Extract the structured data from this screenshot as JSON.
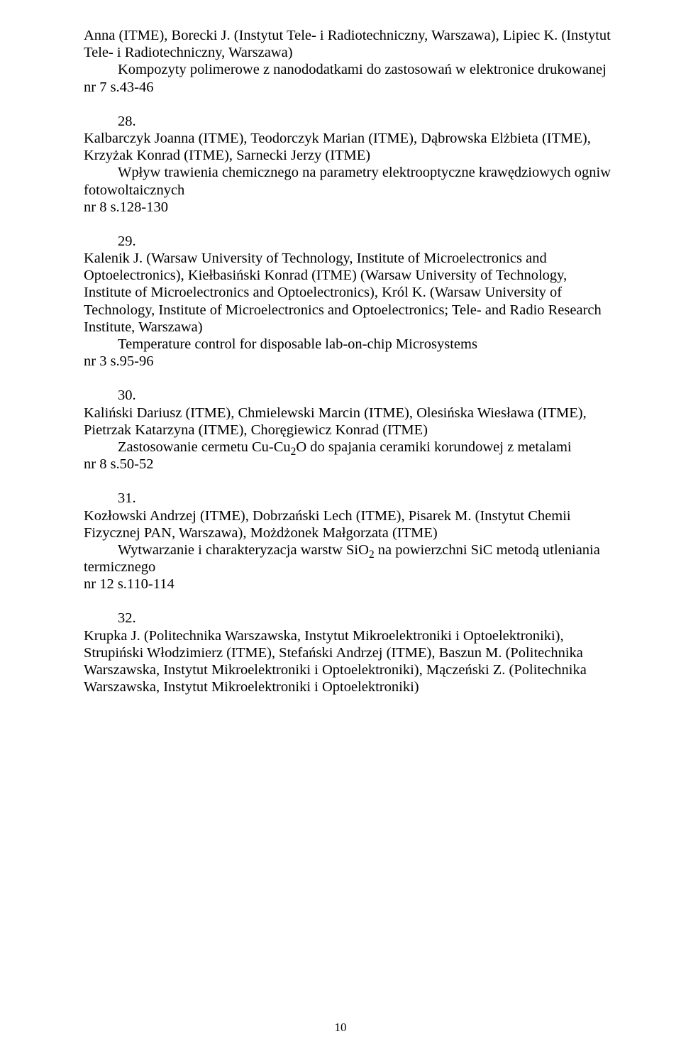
{
  "entries": [
    {
      "authors_pre": "Anna (ITME), Borecki J. (Instytut Tele- i Radiotechniczny, Warszawa), Lipiec K. (Instytut Tele- i Radiotechniczny, Warszawa)",
      "title": "Kompozyty polimerowe z nanododatkami do zastosowań w elektronice drukowanej",
      "ref": "nr 7 s.43-46"
    },
    {
      "num": "28.",
      "authors": "Kalbarczyk Joanna (ITME), Teodorczyk Marian (ITME), Dąbrowska Elżbieta (ITME), Krzyżak Konrad (ITME), Sarnecki Jerzy (ITME)",
      "title": "Wpływ trawienia chemicznego na parametry elektrooptyczne krawędziowych ogniw fotowoltaicznych",
      "ref": "nr 8 s.128-130"
    },
    {
      "num": "29.",
      "authors": "Kalenik J. (Warsaw University of Technology, Institute of Microelectronics and Optoelectronics), Kiełbasiński Konrad (ITME) (Warsaw University of Technology, Institute of Microelectronics and Optoelectronics), Król K. (Warsaw University of Technology, Institute of Microelectronics and Optoelectronics; Tele- and Radio Research Institute, Warszawa)",
      "title": "Temperature control for disposable lab-on-chip Microsystems",
      "ref": "nr 3 s.95-96"
    },
    {
      "num": "30.",
      "authors": "Kaliński Dariusz (ITME), Chmielewski Marcin (ITME), Olesińska Wiesława (ITME), Pietrzak Katarzyna (ITME), Choręgiewicz Konrad (ITME)",
      "title_html": "Zastosowanie cermetu Cu-Cu<sub>2</sub>O do spajania ceramiki korundowej z metalami",
      "ref": "nr 8 s.50-52"
    },
    {
      "num": "31.",
      "authors": "Kozłowski Andrzej (ITME), Dobrzański Lech (ITME), Pisarek M. (Instytut Chemii Fizycznej PAN, Warszawa), Możdżonek Małgorzata (ITME)",
      "title_html": "Wytwarzanie i charakteryzacja warstw SiO<sub>2</sub> na powierzchni SiC metodą utleniania termicznego",
      "ref": "nr 12 s.110-114"
    },
    {
      "num": "32.",
      "authors": "Krupka J. (Politechnika Warszawska, Instytut Mikroelektroniki i Optoelektroniki), Strupiński Włodzimierz (ITME), Stefański Andrzej (ITME), Baszun M. (Politechnika Warszawska, Instytut Mikroelektroniki i Optoelektroniki), Mączeński Z. (Politechnika Warszawska, Instytut Mikroelektroniki i Optoelektroniki)"
    }
  ],
  "pagenum": "10"
}
